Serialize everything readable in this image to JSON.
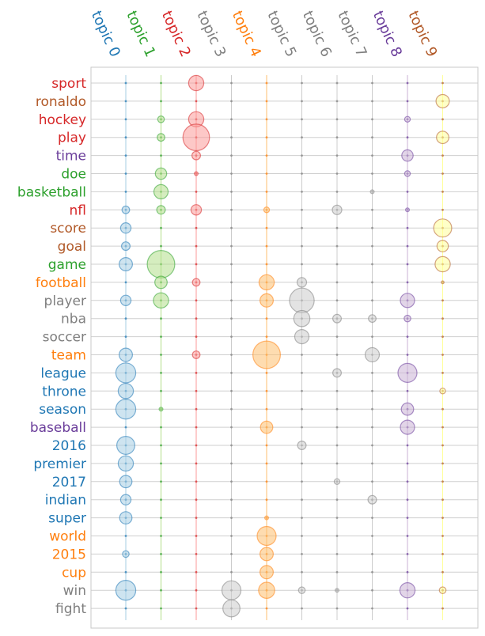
{
  "chart_data": {
    "type": "scatter",
    "title": "",
    "xlabel": "",
    "ylabel": "",
    "grid": true,
    "x_labels": [
      "topic 0",
      "topic 1",
      "topic 2",
      "topic 3",
      "topic 4",
      "topic 5",
      "topic 6",
      "topic 7",
      "topic 8",
      "topic 9"
    ],
    "y_labels": [
      "sport",
      "ronaldo",
      "hockey",
      "play",
      "time",
      "doe",
      "basketball",
      "nfl",
      "score",
      "goal",
      "game",
      "football",
      "player",
      "nba",
      "soccer",
      "team",
      "league",
      "throne",
      "season",
      "baseball",
      "2016",
      "premier",
      "2017",
      "indian",
      "super",
      "world",
      "2015",
      "cup",
      "win",
      "fight"
    ],
    "topic_colors": [
      "#1f77b4",
      "#2ca02c",
      "#d62728",
      "#7f7f7f",
      "#ff7f0e",
      "#7f7f7f",
      "#7f7f7f",
      "#7f7f7f",
      "#6a3d9a",
      "#b15928"
    ],
    "fill_colors": [
      "#a6cee3",
      "#b2df8a",
      "#fb9a99",
      "#cccccc",
      "#fdbf6f",
      "#cccccc",
      "#cccccc",
      "#cccccc",
      "#cab2d6",
      "#ffff99"
    ],
    "word_topic": [
      2,
      9,
      2,
      2,
      8,
      1,
      1,
      2,
      9,
      9,
      1,
      4,
      5,
      5,
      5,
      4,
      0,
      0,
      0,
      8,
      0,
      0,
      0,
      0,
      0,
      4,
      4,
      4,
      5,
      5
    ],
    "points": [
      [
        0,
        2,
        0.8
      ],
      [
        1,
        9,
        0.7
      ],
      [
        2,
        2,
        0.8
      ],
      [
        2,
        1,
        0.35
      ],
      [
        2,
        8,
        0.3
      ],
      [
        3,
        2,
        1.4
      ],
      [
        3,
        1,
        0.4
      ],
      [
        3,
        9,
        0.65
      ],
      [
        4,
        2,
        0.45
      ],
      [
        4,
        8,
        0.6
      ],
      [
        5,
        1,
        0.6
      ],
      [
        5,
        2,
        0.2
      ],
      [
        5,
        8,
        0.3
      ],
      [
        6,
        1,
        0.75
      ],
      [
        6,
        7,
        0.2
      ],
      [
        7,
        0,
        0.4
      ],
      [
        7,
        1,
        0.45
      ],
      [
        7,
        2,
        0.55
      ],
      [
        7,
        4,
        0.3
      ],
      [
        7,
        6,
        0.5
      ],
      [
        7,
        8,
        0.2
      ],
      [
        8,
        0,
        0.55
      ],
      [
        8,
        9,
        0.95
      ],
      [
        9,
        0,
        0.45
      ],
      [
        9,
        9,
        0.6
      ],
      [
        10,
        0,
        0.7
      ],
      [
        10,
        1,
        1.45
      ],
      [
        10,
        9,
        0.8
      ],
      [
        11,
        1,
        0.65
      ],
      [
        11,
        2,
        0.4
      ],
      [
        11,
        4,
        0.8
      ],
      [
        11,
        5,
        0.5
      ],
      [
        11,
        9,
        0.15
      ],
      [
        12,
        0,
        0.55
      ],
      [
        12,
        1,
        0.8
      ],
      [
        12,
        4,
        0.7
      ],
      [
        12,
        5,
        1.3
      ],
      [
        12,
        8,
        0.75
      ],
      [
        13,
        5,
        0.85
      ],
      [
        13,
        6,
        0.45
      ],
      [
        13,
        7,
        0.4
      ],
      [
        13,
        8,
        0.35
      ],
      [
        14,
        5,
        0.75
      ],
      [
        15,
        0,
        0.7
      ],
      [
        15,
        2,
        0.4
      ],
      [
        15,
        4,
        1.45
      ],
      [
        15,
        7,
        0.75
      ],
      [
        16,
        0,
        1.05
      ],
      [
        16,
        6,
        0.45
      ],
      [
        16,
        8,
        1.0
      ],
      [
        17,
        0,
        0.8
      ],
      [
        17,
        9,
        0.3
      ],
      [
        18,
        0,
        1.05
      ],
      [
        18,
        1,
        0.2
      ],
      [
        18,
        8,
        0.65
      ],
      [
        19,
        4,
        0.65
      ],
      [
        19,
        8,
        0.75
      ],
      [
        20,
        0,
        0.95
      ],
      [
        20,
        5,
        0.45
      ],
      [
        21,
        0,
        0.8
      ],
      [
        22,
        0,
        0.65
      ],
      [
        22,
        6,
        0.3
      ],
      [
        23,
        0,
        0.55
      ],
      [
        23,
        7,
        0.45
      ],
      [
        24,
        0,
        0.65
      ],
      [
        24,
        4,
        0.2
      ],
      [
        25,
        4,
        1.0
      ],
      [
        26,
        0,
        0.35
      ],
      [
        26,
        4,
        0.7
      ],
      [
        27,
        4,
        0.7
      ],
      [
        28,
        0,
        1.05
      ],
      [
        28,
        3,
        1.0
      ],
      [
        28,
        4,
        0.85
      ],
      [
        28,
        5,
        0.35
      ],
      [
        28,
        6,
        0.2
      ],
      [
        28,
        8,
        0.8
      ],
      [
        28,
        9,
        0.35
      ],
      [
        29,
        3,
        0.9
      ]
    ]
  }
}
